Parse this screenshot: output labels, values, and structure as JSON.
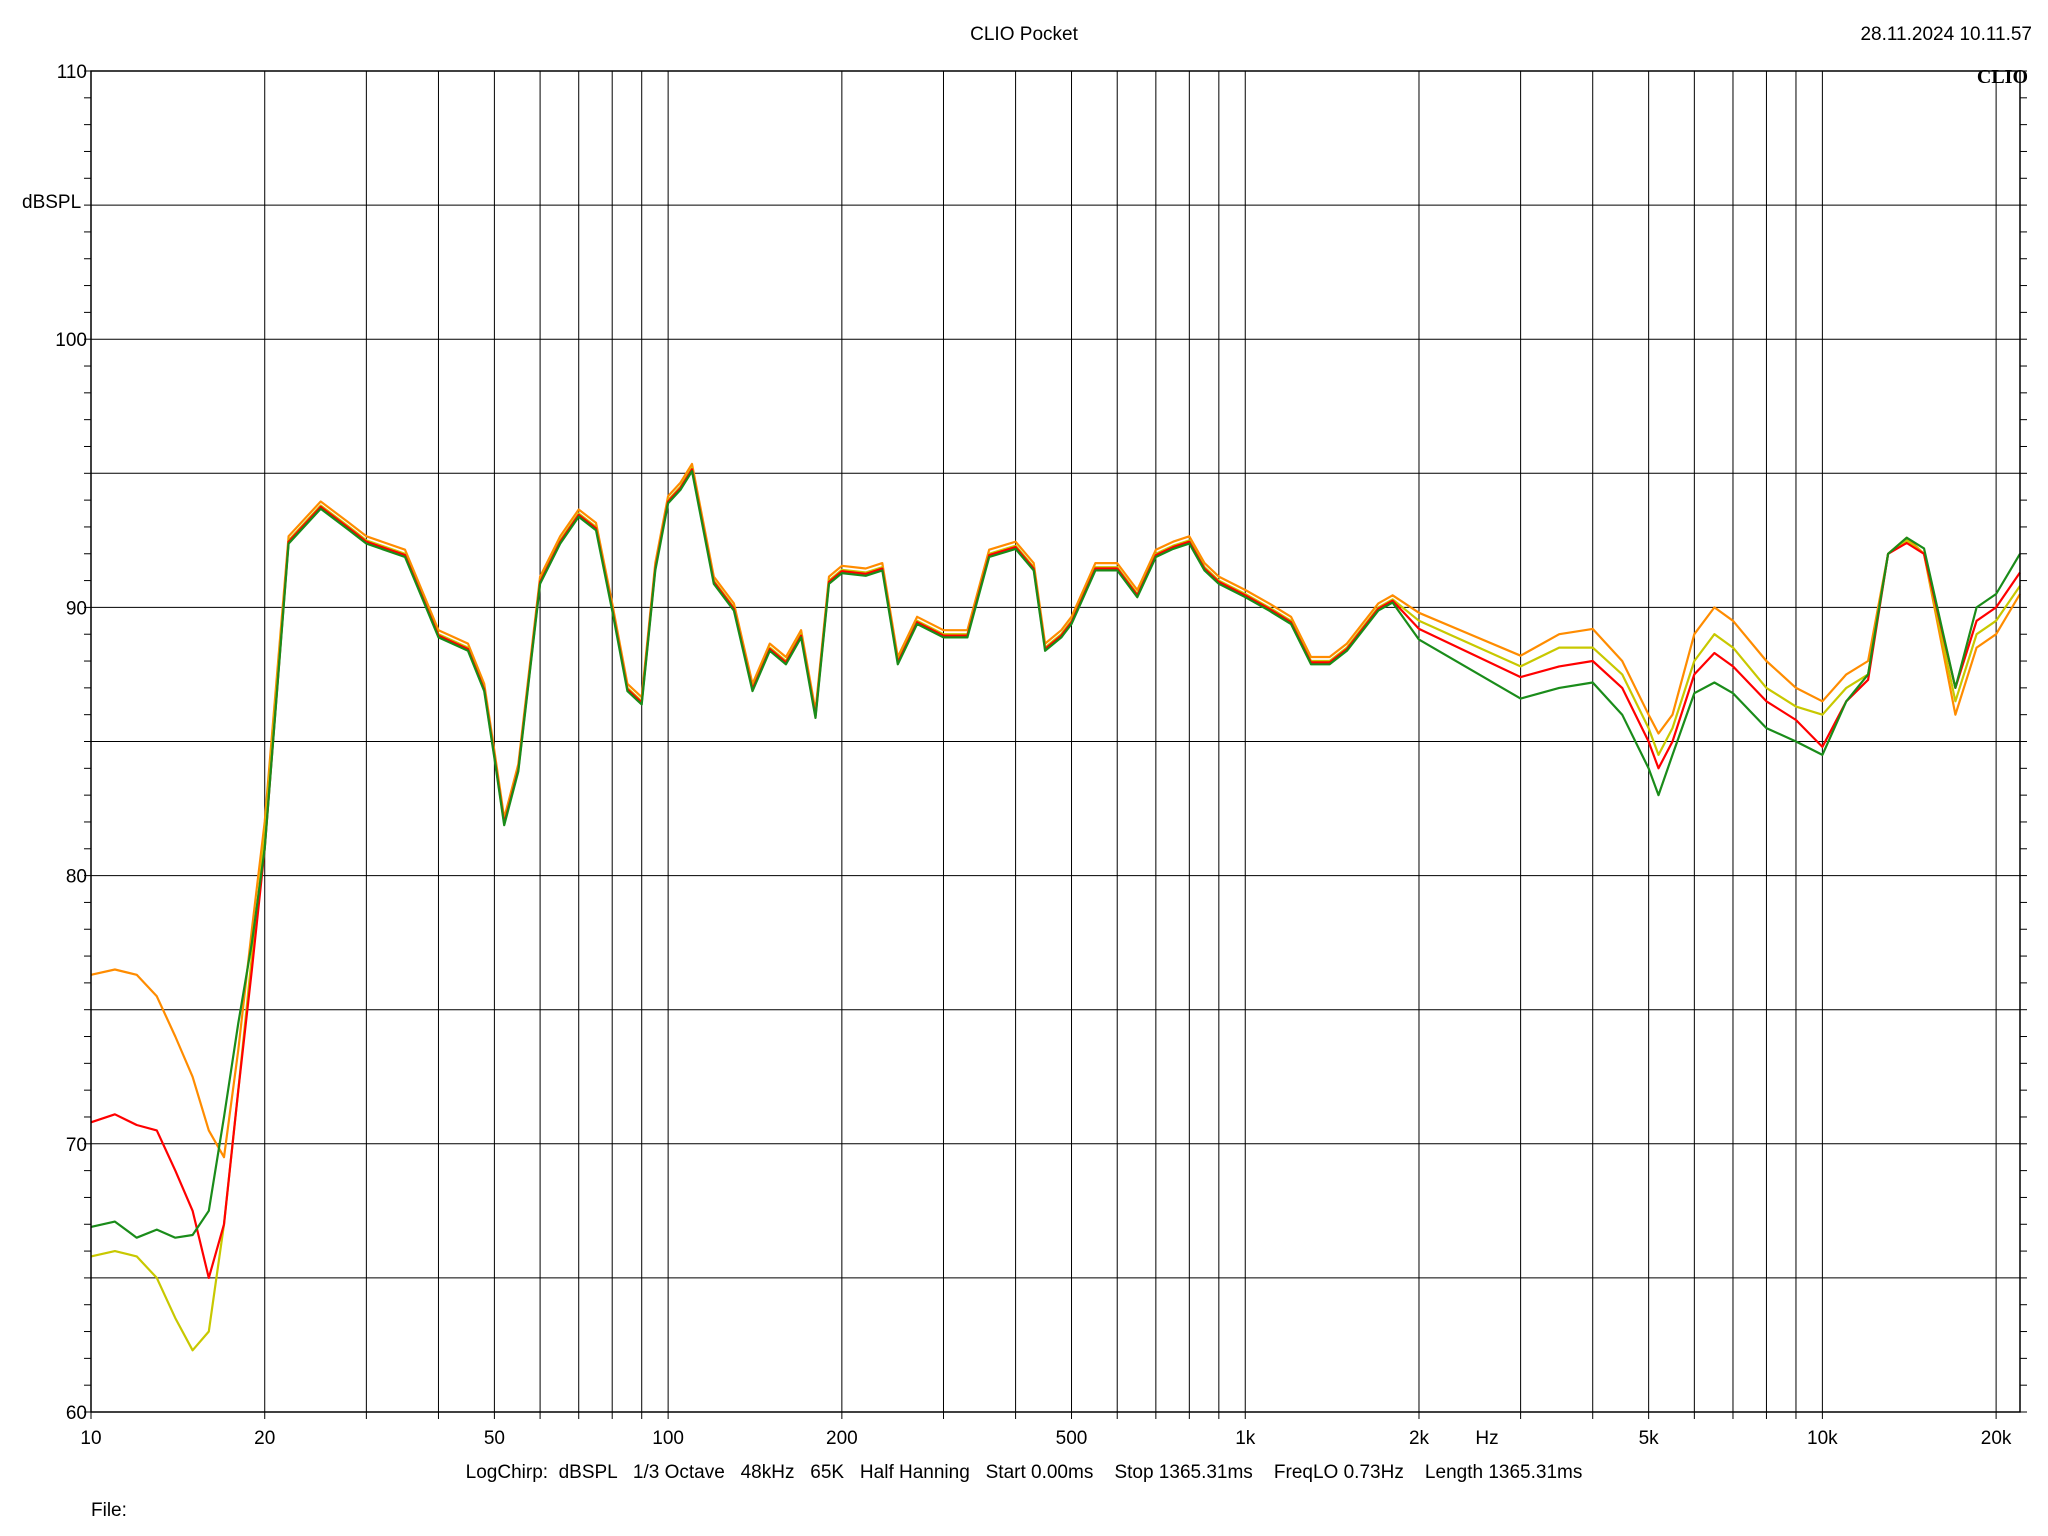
{
  "header": {
    "title": "CLIO Pocket",
    "datetime": "28.11.2024 10.11.57",
    "brand": "CLIO"
  },
  "axes": {
    "ylabel": "dBSPL",
    "xlabel": "Hz",
    "params": "LogChirp:  dBSPL   1/3 Octave   48kHz   65K   Half Hanning   Start 0.00ms    Stop 1365.31ms    FreqLO 0.73Hz    Length 1365.31ms",
    "file_label": "File:"
  },
  "colors": {
    "background": "#ffffff",
    "grid": "#000000",
    "orange": "#ff8c00",
    "red": "#ff0000",
    "yellow": "#c8c800",
    "green": "#1a8c1a"
  },
  "chart_data": {
    "type": "line",
    "title": "CLIO Pocket",
    "xlabel": "Hz",
    "ylabel": "dBSPL",
    "xscale": "log",
    "xlim": [
      10,
      22000
    ],
    "ylim": [
      60,
      110
    ],
    "grid": true,
    "x_tick_labels": [
      "10",
      "20",
      "50",
      "100",
      "200",
      "500",
      "1k",
      "2k",
      "5k",
      "10k",
      "20k"
    ],
    "x_tick_values": [
      10,
      20,
      50,
      100,
      200,
      500,
      1000,
      2000,
      5000,
      10000,
      20000
    ],
    "y_tick_labels": [
      "60",
      "70",
      "80",
      "90",
      "100",
      "110"
    ],
    "y_tick_values": [
      60,
      70,
      80,
      90,
      100,
      110
    ],
    "base_response": [
      [
        20,
        89.5
      ],
      [
        22,
        92.5
      ],
      [
        25,
        93.8
      ],
      [
        28,
        93.0
      ],
      [
        30,
        92.5
      ],
      [
        35,
        92.0
      ],
      [
        40,
        89.0
      ],
      [
        45,
        88.5
      ],
      [
        48,
        87.0
      ],
      [
        50,
        84.5
      ],
      [
        52,
        82.0
      ],
      [
        55,
        84.0
      ],
      [
        60,
        91.0
      ],
      [
        65,
        92.5
      ],
      [
        70,
        93.5
      ],
      [
        75,
        93.0
      ],
      [
        80,
        90.0
      ],
      [
        85,
        87.0
      ],
      [
        90,
        86.5
      ],
      [
        95,
        91.5
      ],
      [
        100,
        94.0
      ],
      [
        105,
        94.5
      ],
      [
        110,
        95.2
      ],
      [
        120,
        91.0
      ],
      [
        130,
        90.0
      ],
      [
        140,
        87.0
      ],
      [
        150,
        88.5
      ],
      [
        160,
        88.0
      ],
      [
        170,
        89.0
      ],
      [
        180,
        86.0
      ],
      [
        190,
        91.0
      ],
      [
        200,
        91.4
      ],
      [
        220,
        91.3
      ],
      [
        235,
        91.5
      ],
      [
        250,
        88.0
      ],
      [
        270,
        89.5
      ],
      [
        300,
        89.0
      ],
      [
        330,
        89.0
      ],
      [
        360,
        92.0
      ],
      [
        400,
        92.3
      ],
      [
        430,
        91.5
      ],
      [
        450,
        88.5
      ],
      [
        480,
        89.0
      ],
      [
        500,
        89.5
      ],
      [
        550,
        91.5
      ],
      [
        600,
        91.5
      ],
      [
        650,
        90.5
      ],
      [
        700,
        92.0
      ],
      [
        750,
        92.3
      ],
      [
        800,
        92.5
      ],
      [
        850,
        91.5
      ],
      [
        900,
        91.0
      ],
      [
        1000,
        90.5
      ],
      [
        1100,
        90.0
      ],
      [
        1200,
        89.5
      ],
      [
        1300,
        88.0
      ],
      [
        1400,
        88.0
      ],
      [
        1500,
        88.5
      ],
      [
        1700,
        90.0
      ],
      [
        1800,
        90.3
      ],
      [
        2000,
        89.5
      ]
    ],
    "series": [
      {
        "color": "#ff8c00",
        "values": [
          [
            10,
            76.3
          ],
          [
            11,
            76.5
          ],
          [
            12,
            76.3
          ],
          [
            13,
            75.5
          ],
          [
            14,
            74.0
          ],
          [
            15,
            72.5
          ],
          [
            16,
            70.5
          ],
          [
            17,
            69.5
          ],
          [
            18,
            73.5
          ],
          [
            19,
            78.0
          ],
          [
            20,
            82.0
          ],
          [
            2000,
            89.8
          ],
          [
            3000,
            88.2
          ],
          [
            3500,
            89.0
          ],
          [
            4000,
            89.2
          ],
          [
            4500,
            88.0
          ],
          [
            5000,
            86.0
          ],
          [
            5200,
            85.3
          ],
          [
            5500,
            86.0
          ],
          [
            6000,
            89.0
          ],
          [
            6500,
            90.0
          ],
          [
            7000,
            89.5
          ],
          [
            8000,
            88.0
          ],
          [
            9000,
            87.0
          ],
          [
            10000,
            86.5
          ],
          [
            11000,
            87.5
          ],
          [
            12000,
            88.0
          ],
          [
            13000,
            92.0
          ],
          [
            14000,
            92.6
          ],
          [
            15000,
            92.0
          ],
          [
            17000,
            86.0
          ],
          [
            18500,
            88.5
          ],
          [
            20000,
            89.0
          ],
          [
            22000,
            90.5
          ]
        ]
      },
      {
        "color": "#c8c800",
        "values": [
          [
            10,
            65.8
          ],
          [
            11,
            66.0
          ],
          [
            12,
            65.8
          ],
          [
            13,
            65.0
          ],
          [
            14,
            63.5
          ],
          [
            15,
            62.3
          ],
          [
            16,
            63.0
          ],
          [
            17,
            67.0
          ],
          [
            18,
            72.0
          ],
          [
            19,
            77.0
          ],
          [
            20,
            81.5
          ],
          [
            2000,
            89.5
          ],
          [
            3000,
            87.8
          ],
          [
            3500,
            88.5
          ],
          [
            4000,
            88.5
          ],
          [
            4500,
            87.5
          ],
          [
            5000,
            85.5
          ],
          [
            5200,
            84.5
          ],
          [
            5500,
            85.5
          ],
          [
            6000,
            88.0
          ],
          [
            6500,
            89.0
          ],
          [
            7000,
            88.5
          ],
          [
            8000,
            87.0
          ],
          [
            9000,
            86.3
          ],
          [
            10000,
            86.0
          ],
          [
            11000,
            87.0
          ],
          [
            12000,
            87.5
          ],
          [
            13000,
            92.0
          ],
          [
            14000,
            92.5
          ],
          [
            15000,
            92.0
          ],
          [
            17000,
            86.5
          ],
          [
            18500,
            89.0
          ],
          [
            20000,
            89.5
          ],
          [
            22000,
            90.8
          ]
        ]
      },
      {
        "color": "#ff0000",
        "values": [
          [
            10,
            70.8
          ],
          [
            11,
            71.1
          ],
          [
            12,
            70.7
          ],
          [
            13,
            70.5
          ],
          [
            14,
            69.0
          ],
          [
            15,
            67.5
          ],
          [
            16,
            65.0
          ],
          [
            17,
            67.0
          ],
          [
            18,
            72.0
          ],
          [
            19,
            76.5
          ],
          [
            20,
            81.0
          ],
          [
            2000,
            89.2
          ],
          [
            3000,
            87.4
          ],
          [
            3500,
            87.8
          ],
          [
            4000,
            88.0
          ],
          [
            4500,
            87.0
          ],
          [
            5000,
            85.0
          ],
          [
            5200,
            84.0
          ],
          [
            5500,
            85.0
          ],
          [
            6000,
            87.5
          ],
          [
            6500,
            88.3
          ],
          [
            7000,
            87.8
          ],
          [
            8000,
            86.5
          ],
          [
            9000,
            85.8
          ],
          [
            10000,
            84.8
          ],
          [
            11000,
            86.5
          ],
          [
            12000,
            87.3
          ],
          [
            13000,
            92.0
          ],
          [
            14000,
            92.4
          ],
          [
            15000,
            92.0
          ],
          [
            17000,
            87.0
          ],
          [
            18500,
            89.5
          ],
          [
            20000,
            90.0
          ],
          [
            22000,
            91.3
          ]
        ]
      },
      {
        "color": "#1a8c1a",
        "values": [
          [
            10,
            66.9
          ],
          [
            11,
            67.1
          ],
          [
            12,
            66.5
          ],
          [
            13,
            66.8
          ],
          [
            14,
            66.5
          ],
          [
            15,
            66.6
          ],
          [
            16,
            67.5
          ],
          [
            17,
            71.0
          ],
          [
            18,
            74.5
          ],
          [
            19,
            77.5
          ],
          [
            20,
            81.0
          ],
          [
            2000,
            88.8
          ],
          [
            3000,
            86.6
          ],
          [
            3500,
            87.0
          ],
          [
            4000,
            87.2
          ],
          [
            4500,
            86.0
          ],
          [
            5000,
            84.0
          ],
          [
            5200,
            83.0
          ],
          [
            5500,
            84.5
          ],
          [
            6000,
            86.8
          ],
          [
            6500,
            87.2
          ],
          [
            7000,
            86.8
          ],
          [
            8000,
            85.5
          ],
          [
            9000,
            85.0
          ],
          [
            10000,
            84.5
          ],
          [
            11000,
            86.5
          ],
          [
            12000,
            87.5
          ],
          [
            13000,
            92.0
          ],
          [
            14000,
            92.6
          ],
          [
            15000,
            92.2
          ],
          [
            17000,
            87.0
          ],
          [
            18500,
            90.0
          ],
          [
            20000,
            90.5
          ],
          [
            22000,
            92.0
          ]
        ]
      }
    ]
  }
}
